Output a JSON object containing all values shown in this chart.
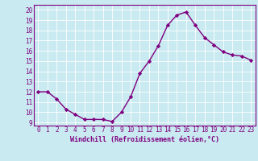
{
  "x": [
    0,
    1,
    2,
    3,
    4,
    5,
    6,
    7,
    8,
    9,
    10,
    11,
    12,
    13,
    14,
    15,
    16,
    17,
    18,
    19,
    20,
    21,
    22,
    23
  ],
  "y": [
    12,
    12,
    11.3,
    10.3,
    9.8,
    9.3,
    9.3,
    9.3,
    9.1,
    10.0,
    11.5,
    13.8,
    15.0,
    16.5,
    18.5,
    19.5,
    19.8,
    18.5,
    17.3,
    16.6,
    15.9,
    15.6,
    15.5,
    15.1
  ],
  "line_color": "#800080",
  "marker": "D",
  "markersize": 2.2,
  "linewidth": 1.0,
  "background_color": "#c8eaf0",
  "grid_color": "#b0d8e0",
  "xlabel": "Windchill (Refroidissement éolien,°C)",
  "xlabel_color": "#800080",
  "ylabel_ticks": [
    9,
    10,
    11,
    12,
    13,
    14,
    15,
    16,
    17,
    18,
    19,
    20
  ],
  "xlim": [
    -0.5,
    23.5
  ],
  "ylim": [
    8.7,
    20.5
  ],
  "xtick_labels": [
    "0",
    "1",
    "2",
    "3",
    "4",
    "5",
    "6",
    "7",
    "8",
    "9",
    "10",
    "11",
    "12",
    "13",
    "14",
    "15",
    "16",
    "17",
    "18",
    "19",
    "20",
    "21",
    "22",
    "23"
  ],
  "tick_color": "#800080",
  "label_fontsize": 6.0,
  "tick_fontsize": 5.5,
  "spine_color": "#800080"
}
